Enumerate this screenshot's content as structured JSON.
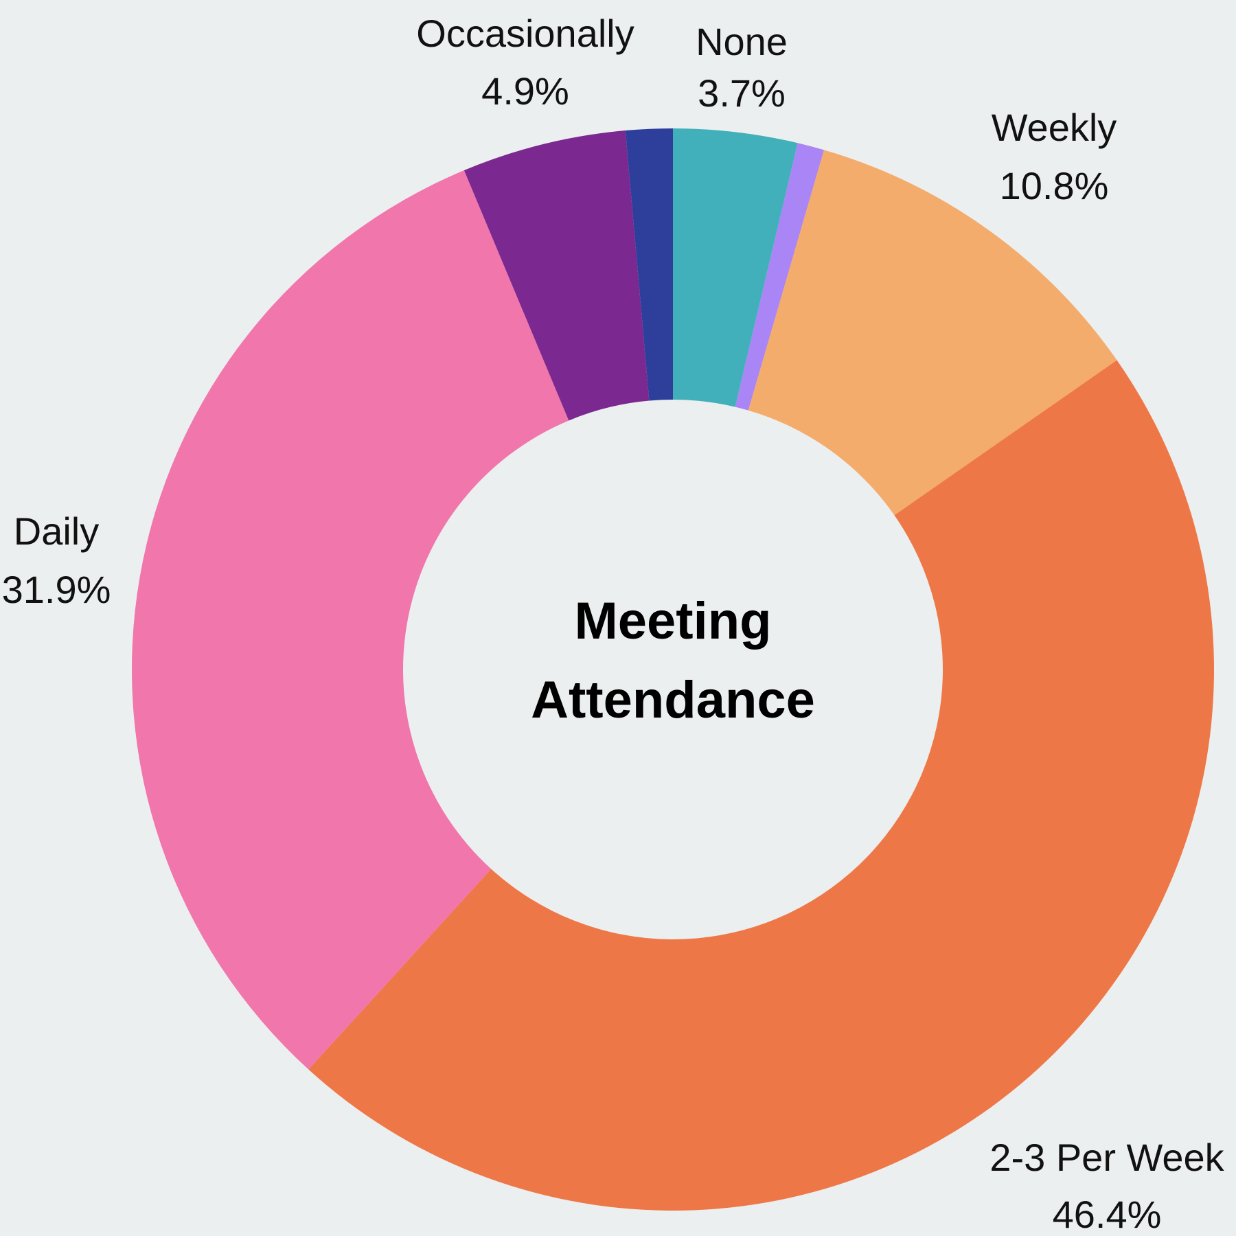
{
  "background": "#ECEFEF",
  "chart_data": {
    "type": "pie",
    "donut": true,
    "center_title_lines": [
      "Meeting",
      "Attendance"
    ],
    "slices": [
      {
        "label": "None",
        "value": 3.7,
        "percent_text": "3.7%",
        "color": "#41B0BA",
        "labeled": true
      },
      {
        "label": "",
        "value": 0.8,
        "percent_text": "",
        "color": "#A985F5",
        "labeled": false
      },
      {
        "label": "Weekly",
        "value": 10.8,
        "percent_text": "10.8%",
        "color": "#F3AC6C",
        "labeled": true
      },
      {
        "label": "2-3 Per Week",
        "value": 46.4,
        "percent_text": "46.4%",
        "color": "#EE7747",
        "labeled": true
      },
      {
        "label": "Daily",
        "value": 31.9,
        "percent_text": "31.9%",
        "color": "#F076AB",
        "labeled": true
      },
      {
        "label": "Occasionally",
        "value": 4.9,
        "percent_text": "4.9%",
        "color": "#7B2890",
        "labeled": true
      },
      {
        "label": "",
        "value": 1.4,
        "percent_text": "",
        "color": "#2E3F9B",
        "labeled": false
      }
    ]
  }
}
